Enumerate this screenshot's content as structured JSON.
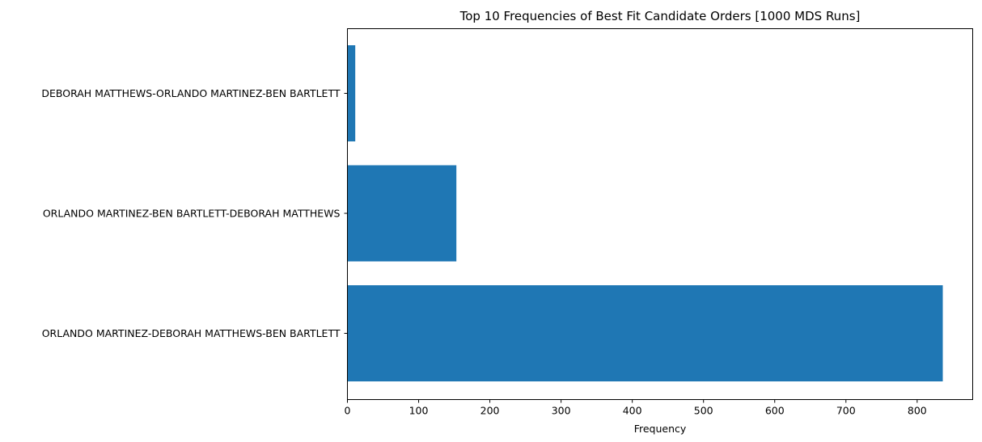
{
  "chart_data": {
    "type": "bar",
    "orientation": "horizontal",
    "title": "Top 10 Frequencies of Best Fit Candidate Orders [1000 MDS Runs]",
    "xlabel": "Frequency",
    "ylabel": "",
    "categories": [
      "ORLANDO MARTINEZ-DEBORAH MATTHEWS-BEN BARTLETT",
      "ORLANDO MARTINEZ-BEN BARTLETT-DEBORAH MATTHEWS",
      "DEBORAH MATTHEWS-ORLANDO MARTINEZ-BEN BARTLETT"
    ],
    "values": [
      836,
      153,
      11
    ],
    "xlim": [
      0,
      878
    ],
    "xticks": [
      0,
      100,
      200,
      300,
      400,
      500,
      600,
      700,
      800
    ],
    "grid": false,
    "colors": {
      "bar": "#1f77b4",
      "axis": "#000000",
      "background": "#ffffff"
    }
  }
}
